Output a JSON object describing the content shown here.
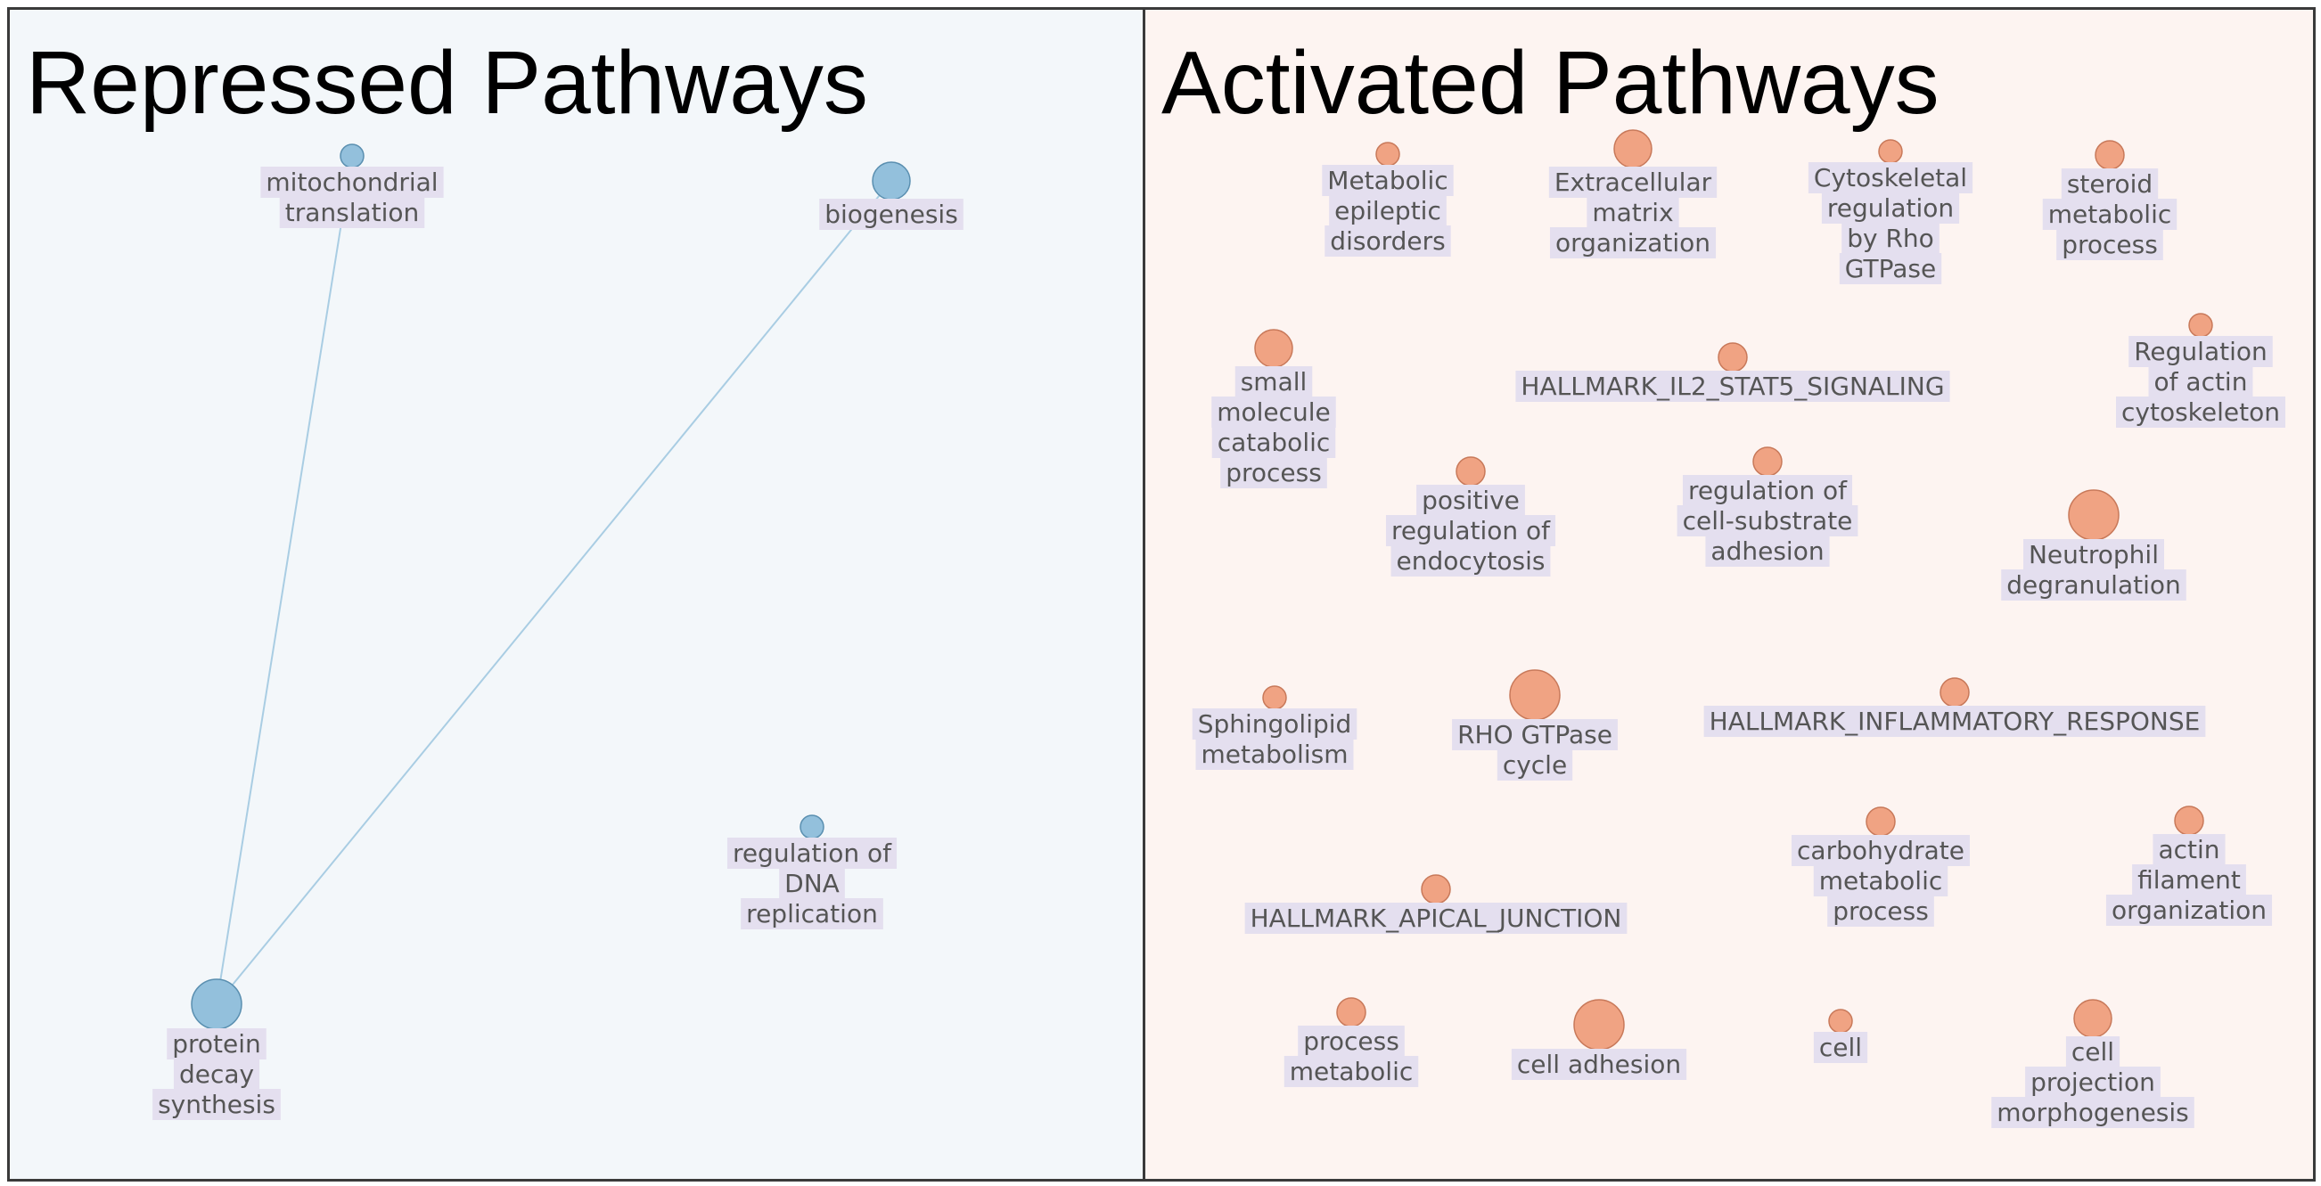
{
  "panels": {
    "repressed": {
      "title": "Repressed Pathways",
      "node_color": "#93c0dc",
      "node_stroke": "#5a8fb0",
      "edge_color": "#a9cde3",
      "background": "#f3f7fa",
      "nodes": [
        {
          "id": "mito",
          "label": [
            "mitochondrial",
            "translation"
          ],
          "size": 1
        },
        {
          "id": "biog",
          "label": [
            "biogenesis"
          ],
          "size": 3
        },
        {
          "id": "dna",
          "label": [
            "regulation of",
            "DNA",
            "replication"
          ],
          "size": 1
        },
        {
          "id": "prot",
          "label": [
            "protein",
            "decay",
            "synthesis"
          ],
          "size": 4
        }
      ],
      "edges": [
        [
          "mito",
          "prot"
        ],
        [
          "biog",
          "prot"
        ]
      ]
    },
    "activated": {
      "title": "Activated Pathways",
      "node_color": "#f0a383",
      "node_stroke": "#c8795a",
      "background": "#fdf4f1",
      "nodes": [
        {
          "id": "a1",
          "label": [
            "Metabolic",
            "epileptic",
            "disorders"
          ],
          "size": 1
        },
        {
          "id": "a2",
          "label": [
            "Extracellular",
            "matrix",
            "organization"
          ],
          "size": 3
        },
        {
          "id": "a3",
          "label": [
            "Cytoskeletal",
            "regulation",
            "by Rho",
            "GTPase"
          ],
          "size": 1
        },
        {
          "id": "a4",
          "label": [
            "steroid",
            "metabolic",
            "process"
          ],
          "size": 2
        },
        {
          "id": "a5",
          "label": [
            "small",
            "molecule",
            "catabolic",
            "process"
          ],
          "size": 3
        },
        {
          "id": "a6",
          "label": [
            "HALLMARK_IL2_STAT5_SIGNALING"
          ],
          "size": 2
        },
        {
          "id": "a7",
          "label": [
            "Regulation",
            "of actin",
            "cytoskeleton"
          ],
          "size": 1
        },
        {
          "id": "a8",
          "label": [
            "positive",
            "regulation of",
            "endocytosis"
          ],
          "size": 2
        },
        {
          "id": "a9",
          "label": [
            "regulation of",
            "cell-substrate",
            "adhesion"
          ],
          "size": 2
        },
        {
          "id": "a10",
          "label": [
            "Neutrophil",
            "degranulation"
          ],
          "size": 4
        },
        {
          "id": "a11",
          "label": [
            "Sphingolipid",
            "metabolism"
          ],
          "size": 1
        },
        {
          "id": "a12",
          "label": [
            "RHO GTPase",
            "cycle"
          ],
          "size": 4
        },
        {
          "id": "a13",
          "label": [
            "HALLMARK_INFLAMMATORY_RESPONSE"
          ],
          "size": 2
        },
        {
          "id": "a14",
          "label": [
            "carbohydrate",
            "metabolic",
            "process"
          ],
          "size": 2
        },
        {
          "id": "a15",
          "label": [
            "actin",
            "filament",
            "organization"
          ],
          "size": 2
        },
        {
          "id": "a16",
          "label": [
            "HALLMARK_APICAL_JUNCTION"
          ],
          "size": 2
        },
        {
          "id": "a17",
          "label": [
            "process",
            "metabolic"
          ],
          "size": 2
        },
        {
          "id": "a18",
          "label": [
            "cell adhesion"
          ],
          "size": 4
        },
        {
          "id": "a19",
          "label": [
            "cell"
          ],
          "size": 1
        },
        {
          "id": "a20",
          "label": [
            "cell",
            "projection",
            "morphogenesis"
          ],
          "size": 3
        }
      ],
      "edges": []
    }
  }
}
